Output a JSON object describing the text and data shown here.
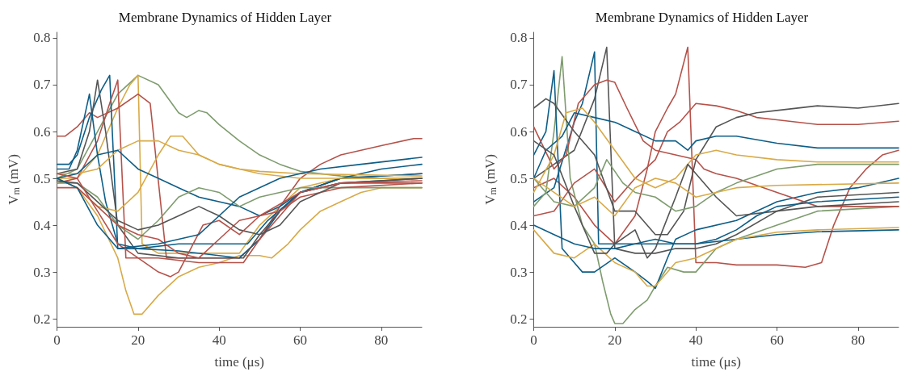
{
  "chart_data": [
    {
      "type": "line",
      "title": "Membrane Dynamics of Hidden Layer",
      "xlabel": "time (μs)",
      "ylabel": "V$_{m}$ (mV)",
      "xlim": [
        0,
        90
      ],
      "ylim": [
        0.183,
        0.812
      ],
      "xticks": [
        0,
        20,
        40,
        60,
        80
      ],
      "yticks": [
        0.2,
        0.3,
        0.4,
        0.5,
        0.6,
        0.7,
        0.8
      ],
      "grid": false,
      "marker": "none",
      "line_style": "solid",
      "series": [
        {
          "color": "#7e9c6e",
          "x": [
            0,
            5,
            10,
            15,
            20,
            25,
            30,
            32,
            35,
            37,
            40,
            45,
            50,
            55,
            60,
            70,
            80,
            90
          ],
          "values": [
            0.5,
            0.52,
            0.6,
            0.68,
            0.72,
            0.7,
            0.64,
            0.63,
            0.645,
            0.64,
            0.615,
            0.58,
            0.55,
            0.53,
            0.515,
            0.505,
            0.5,
            0.5
          ]
        },
        {
          "color": "#d8aa48",
          "x": [
            0,
            5,
            10,
            15,
            17,
            19,
            21,
            25,
            30,
            35,
            40,
            45,
            50,
            53,
            57,
            60,
            65,
            70,
            75,
            80,
            90
          ],
          "values": [
            0.5,
            0.48,
            0.42,
            0.33,
            0.26,
            0.21,
            0.21,
            0.25,
            0.29,
            0.31,
            0.32,
            0.335,
            0.335,
            0.33,
            0.36,
            0.39,
            0.43,
            0.45,
            0.47,
            0.48,
            0.48
          ]
        },
        {
          "color": "#d8aa48",
          "x": [
            0,
            5,
            10,
            15,
            18,
            20,
            21,
            25,
            30,
            40,
            45,
            50,
            55,
            60,
            70,
            90
          ],
          "values": [
            0.5,
            0.5,
            0.55,
            0.65,
            0.7,
            0.72,
            0.36,
            0.34,
            0.34,
            0.34,
            0.34,
            0.4,
            0.44,
            0.48,
            0.5,
            0.5
          ]
        },
        {
          "color": "#b5524a",
          "x": [
            0,
            2,
            5,
            8,
            10,
            15,
            20,
            23,
            27,
            30,
            40,
            45,
            50,
            55,
            60,
            65,
            70,
            80,
            88,
            90
          ],
          "values": [
            0.59,
            0.59,
            0.61,
            0.64,
            0.63,
            0.65,
            0.68,
            0.66,
            0.33,
            0.33,
            0.33,
            0.33,
            0.37,
            0.44,
            0.5,
            0.53,
            0.55,
            0.57,
            0.585,
            0.585
          ]
        },
        {
          "color": "#0e5e87",
          "x": [
            0,
            3,
            5,
            8,
            11,
            13,
            15,
            20,
            30,
            45,
            50,
            55,
            60,
            70,
            80,
            90
          ],
          "values": [
            0.53,
            0.53,
            0.55,
            0.63,
            0.69,
            0.72,
            0.35,
            0.35,
            0.345,
            0.33,
            0.37,
            0.43,
            0.47,
            0.5,
            0.52,
            0.53
          ]
        },
        {
          "color": "#555555",
          "x": [
            0,
            5,
            8,
            10,
            12,
            15,
            20,
            30,
            40,
            46,
            50,
            55,
            60,
            70,
            90
          ],
          "values": [
            0.51,
            0.52,
            0.6,
            0.71,
            0.6,
            0.4,
            0.34,
            0.33,
            0.33,
            0.33,
            0.38,
            0.43,
            0.47,
            0.5,
            0.51
          ]
        },
        {
          "color": "#b5524a",
          "x": [
            0,
            5,
            10,
            13,
            15,
            17,
            25,
            35,
            46,
            50,
            60,
            70,
            90
          ],
          "values": [
            0.49,
            0.5,
            0.58,
            0.66,
            0.71,
            0.33,
            0.33,
            0.32,
            0.32,
            0.37,
            0.47,
            0.49,
            0.49
          ]
        },
        {
          "color": "#0e5e87",
          "x": [
            0,
            3,
            5,
            8,
            10,
            12,
            15,
            20,
            30,
            40,
            47,
            52,
            60,
            70,
            90
          ],
          "values": [
            0.52,
            0.52,
            0.56,
            0.68,
            0.55,
            0.45,
            0.36,
            0.35,
            0.36,
            0.36,
            0.36,
            0.41,
            0.47,
            0.5,
            0.51
          ]
        },
        {
          "color": "#d8aa48",
          "x": [
            0,
            5,
            10,
            15,
            20,
            25,
            30,
            35,
            40,
            45,
            50,
            60,
            90
          ],
          "values": [
            0.51,
            0.51,
            0.52,
            0.56,
            0.58,
            0.58,
            0.56,
            0.55,
            0.53,
            0.52,
            0.515,
            0.51,
            0.505
          ]
        },
        {
          "color": "#d8aa48",
          "x": [
            0,
            5,
            10,
            15,
            20,
            25,
            28,
            31,
            35,
            40,
            45,
            50,
            60,
            90
          ],
          "values": [
            0.5,
            0.48,
            0.44,
            0.43,
            0.47,
            0.55,
            0.59,
            0.59,
            0.55,
            0.53,
            0.52,
            0.51,
            0.5,
            0.5
          ]
        },
        {
          "color": "#0e5e87",
          "x": [
            0,
            5,
            10,
            15,
            20,
            25,
            30,
            35,
            40,
            45,
            50,
            55,
            60,
            70,
            90
          ],
          "values": [
            0.5,
            0.51,
            0.55,
            0.56,
            0.52,
            0.5,
            0.48,
            0.46,
            0.45,
            0.44,
            0.42,
            0.44,
            0.47,
            0.49,
            0.5
          ]
        },
        {
          "color": "#7e9c6e",
          "x": [
            0,
            5,
            10,
            15,
            20,
            25,
            30,
            35,
            40,
            45,
            50,
            60,
            90
          ],
          "values": [
            0.49,
            0.49,
            0.46,
            0.4,
            0.37,
            0.41,
            0.46,
            0.48,
            0.47,
            0.44,
            0.46,
            0.48,
            0.48
          ]
        },
        {
          "color": "#b5524a",
          "x": [
            0,
            5,
            10,
            15,
            20,
            25,
            30,
            35,
            40,
            45,
            50,
            55,
            60,
            70,
            90
          ],
          "values": [
            0.48,
            0.48,
            0.44,
            0.4,
            0.38,
            0.37,
            0.34,
            0.33,
            0.37,
            0.41,
            0.42,
            0.43,
            0.46,
            0.48,
            0.49
          ]
        },
        {
          "color": "#555555",
          "x": [
            0,
            5,
            10,
            15,
            20,
            25,
            30,
            35,
            40,
            45,
            50,
            55,
            60,
            70,
            90
          ],
          "values": [
            0.495,
            0.49,
            0.45,
            0.41,
            0.39,
            0.4,
            0.42,
            0.44,
            0.42,
            0.39,
            0.38,
            0.4,
            0.45,
            0.49,
            0.5
          ]
        },
        {
          "color": "#b5524a",
          "x": [
            0,
            5,
            10,
            15,
            20,
            25,
            28,
            30,
            33,
            36,
            40,
            45,
            50,
            60,
            70,
            90
          ],
          "values": [
            0.51,
            0.5,
            0.43,
            0.36,
            0.33,
            0.3,
            0.29,
            0.3,
            0.35,
            0.4,
            0.41,
            0.38,
            0.42,
            0.47,
            0.49,
            0.495
          ]
        },
        {
          "color": "#0e5e87",
          "x": [
            0,
            5,
            10,
            15,
            25,
            35,
            40,
            45,
            55,
            65,
            75,
            90
          ],
          "values": [
            0.5,
            0.48,
            0.4,
            0.35,
            0.36,
            0.38,
            0.42,
            0.46,
            0.5,
            0.52,
            0.53,
            0.545
          ]
        }
      ]
    },
    {
      "type": "line",
      "title": "Membrane Dynamics of Hidden Layer",
      "xlabel": "time (μs)",
      "ylabel": "V$_{m}$ (mV)",
      "xlim": [
        0,
        90
      ],
      "ylim": [
        0.183,
        0.812
      ],
      "xticks": [
        0,
        20,
        40,
        60,
        80
      ],
      "yticks": [
        0.2,
        0.3,
        0.4,
        0.5,
        0.6,
        0.7,
        0.8
      ],
      "grid": false,
      "marker": "none",
      "line_style": "solid",
      "series": [
        {
          "color": "#b5524a",
          "x": [
            0,
            5,
            10,
            15,
            20,
            25,
            28,
            30,
            33,
            35,
            38,
            40,
            45,
            50,
            60,
            67,
            71,
            74,
            78,
            82,
            86,
            90
          ],
          "values": [
            0.48,
            0.5,
            0.46,
            0.4,
            0.36,
            0.42,
            0.52,
            0.6,
            0.65,
            0.68,
            0.78,
            0.32,
            0.32,
            0.315,
            0.315,
            0.31,
            0.32,
            0.4,
            0.48,
            0.52,
            0.55,
            0.56
          ]
        },
        {
          "color": "#555555",
          "x": [
            0,
            5,
            10,
            15,
            18,
            20,
            25,
            30,
            35,
            40,
            45,
            50,
            60,
            70,
            90
          ],
          "values": [
            0.5,
            0.53,
            0.56,
            0.67,
            0.78,
            0.35,
            0.34,
            0.34,
            0.35,
            0.35,
            0.36,
            0.38,
            0.43,
            0.46,
            0.47
          ]
        },
        {
          "color": "#0e5e87",
          "x": [
            0,
            5,
            10,
            12,
            15,
            16,
            20,
            30,
            40,
            50,
            60,
            70,
            90
          ],
          "values": [
            0.45,
            0.48,
            0.62,
            0.66,
            0.77,
            0.36,
            0.36,
            0.36,
            0.36,
            0.37,
            0.38,
            0.386,
            0.39
          ]
        },
        {
          "color": "#7e9c6e",
          "x": [
            0,
            3,
            5,
            7,
            9,
            12,
            15,
            17,
            19,
            20,
            22,
            25,
            28,
            30,
            33,
            37,
            40,
            45,
            50,
            60,
            70,
            90
          ],
          "values": [
            0.44,
            0.47,
            0.6,
            0.76,
            0.5,
            0.4,
            0.36,
            0.28,
            0.21,
            0.19,
            0.19,
            0.22,
            0.24,
            0.27,
            0.31,
            0.3,
            0.3,
            0.35,
            0.37,
            0.4,
            0.43,
            0.44
          ]
        },
        {
          "color": "#0e5e87",
          "x": [
            0,
            3,
            5,
            7,
            10,
            12,
            15,
            20,
            25,
            28,
            30,
            33,
            35,
            40,
            50,
            60,
            70,
            80,
            90
          ],
          "values": [
            0.55,
            0.6,
            0.73,
            0.35,
            0.32,
            0.3,
            0.3,
            0.33,
            0.3,
            0.28,
            0.265,
            0.33,
            0.37,
            0.39,
            0.41,
            0.45,
            0.47,
            0.48,
            0.5
          ]
        },
        {
          "color": "#b5524a",
          "x": [
            0,
            5,
            8,
            11,
            15,
            18,
            20,
            23,
            27,
            30,
            35,
            40,
            42,
            45,
            50,
            60,
            70,
            90
          ],
          "values": [
            0.61,
            0.52,
            0.55,
            0.66,
            0.7,
            0.71,
            0.705,
            0.65,
            0.58,
            0.56,
            0.55,
            0.54,
            0.52,
            0.51,
            0.5,
            0.47,
            0.44,
            0.44
          ]
        },
        {
          "color": "#b5524a",
          "x": [
            0,
            5,
            10,
            15,
            20,
            25,
            30,
            33,
            36,
            40,
            45,
            50,
            55,
            60,
            70,
            80,
            90
          ],
          "values": [
            0.42,
            0.43,
            0.49,
            0.52,
            0.45,
            0.5,
            0.54,
            0.6,
            0.62,
            0.66,
            0.655,
            0.645,
            0.63,
            0.625,
            0.615,
            0.615,
            0.622
          ]
        },
        {
          "color": "#555555",
          "x": [
            0,
            3,
            5,
            10,
            15,
            20,
            25,
            30,
            33,
            37,
            40,
            45,
            50,
            55,
            60,
            70,
            80,
            90
          ],
          "values": [
            0.65,
            0.67,
            0.66,
            0.6,
            0.55,
            0.43,
            0.43,
            0.38,
            0.38,
            0.43,
            0.54,
            0.61,
            0.63,
            0.64,
            0.645,
            0.655,
            0.65,
            0.66
          ]
        },
        {
          "color": "#0e5e87",
          "x": [
            0,
            3,
            7,
            10,
            15,
            20,
            25,
            30,
            35,
            38,
            40,
            45,
            50,
            60,
            70,
            80,
            90
          ],
          "values": [
            0.5,
            0.56,
            0.59,
            0.64,
            0.63,
            0.62,
            0.6,
            0.58,
            0.58,
            0.56,
            0.58,
            0.59,
            0.59,
            0.575,
            0.565,
            0.565,
            0.565
          ]
        },
        {
          "color": "#d8aa48",
          "x": [
            0,
            5,
            8,
            12,
            15,
            20,
            25,
            30,
            35,
            40,
            45,
            50,
            60,
            70,
            90
          ],
          "values": [
            0.47,
            0.55,
            0.64,
            0.65,
            0.62,
            0.56,
            0.5,
            0.48,
            0.5,
            0.55,
            0.56,
            0.55,
            0.54,
            0.535,
            0.535
          ]
        },
        {
          "color": "#d8aa48",
          "x": [
            0,
            5,
            10,
            15,
            20,
            25,
            28,
            30,
            35,
            40,
            45,
            50,
            60,
            70,
            90
          ],
          "values": [
            0.39,
            0.34,
            0.33,
            0.36,
            0.32,
            0.3,
            0.27,
            0.27,
            0.32,
            0.33,
            0.35,
            0.37,
            0.385,
            0.39,
            0.395
          ]
        },
        {
          "color": "#555555",
          "x": [
            0,
            5,
            10,
            13,
            15,
            18,
            20,
            25,
            28,
            30,
            35,
            38,
            40,
            45,
            50,
            60,
            70,
            90
          ],
          "values": [
            0.58,
            0.55,
            0.44,
            0.38,
            0.34,
            0.34,
            0.36,
            0.39,
            0.33,
            0.35,
            0.46,
            0.53,
            0.51,
            0.46,
            0.42,
            0.43,
            0.44,
            0.45
          ]
        },
        {
          "color": "#7e9c6e",
          "x": [
            0,
            5,
            10,
            15,
            18,
            22,
            25,
            30,
            35,
            40,
            45,
            50,
            60,
            70,
            90
          ],
          "values": [
            0.5,
            0.45,
            0.44,
            0.48,
            0.54,
            0.49,
            0.47,
            0.46,
            0.43,
            0.44,
            0.47,
            0.49,
            0.52,
            0.53,
            0.53
          ]
        },
        {
          "color": "#0e5e87",
          "x": [
            0,
            5,
            10,
            15,
            20,
            25,
            30,
            35,
            40,
            45,
            50,
            55,
            60,
            70,
            90
          ],
          "values": [
            0.4,
            0.38,
            0.36,
            0.35,
            0.35,
            0.36,
            0.37,
            0.36,
            0.36,
            0.37,
            0.39,
            0.42,
            0.44,
            0.45,
            0.46
          ]
        },
        {
          "color": "#d8aa48",
          "x": [
            0,
            5,
            10,
            15,
            20,
            25,
            30,
            35,
            40,
            45,
            50,
            60,
            90
          ],
          "values": [
            0.5,
            0.47,
            0.44,
            0.46,
            0.42,
            0.48,
            0.5,
            0.49,
            0.46,
            0.47,
            0.48,
            0.485,
            0.49
          ]
        }
      ]
    }
  ]
}
